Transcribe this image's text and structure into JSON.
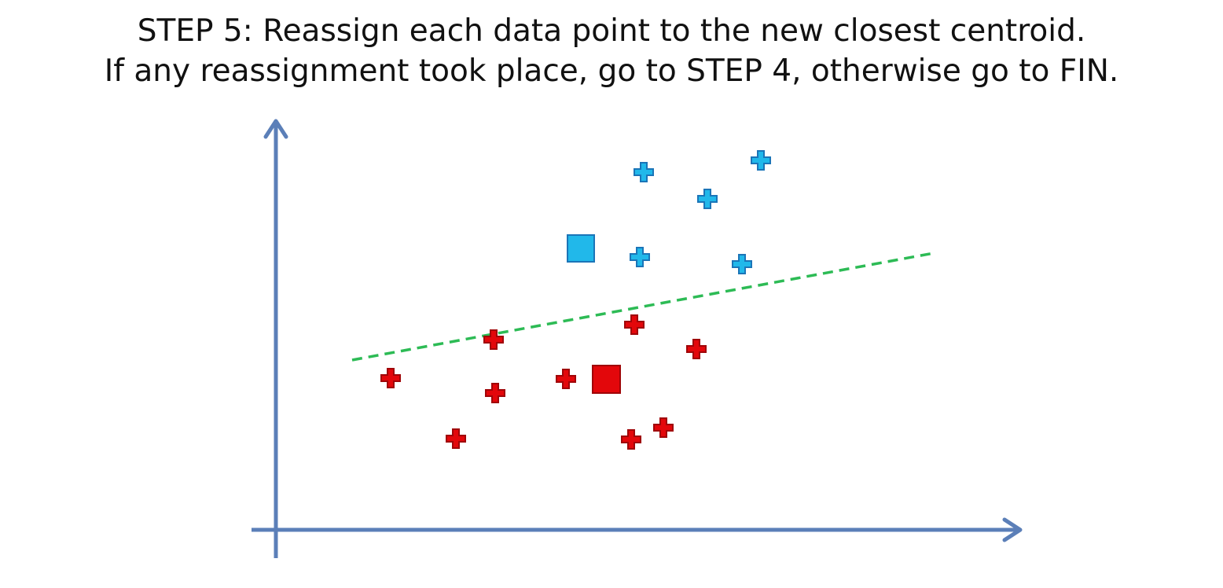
{
  "title": {
    "line1": "STEP 5: Reassign each data point to the new closest centroid.",
    "line2": "If any reassignment took place, go to STEP 4, otherwise go to FIN."
  },
  "colors": {
    "axis": "#5b7fb8",
    "cluster_blue_fill": "#21b8ea",
    "cluster_blue_stroke": "#1b75b8",
    "cluster_red_fill": "#e3070b",
    "cluster_red_stroke": "#a00508",
    "boundary": "#2dbb55"
  },
  "icons": {
    "point": "plus-marker",
    "centroid": "square-marker"
  }
}
